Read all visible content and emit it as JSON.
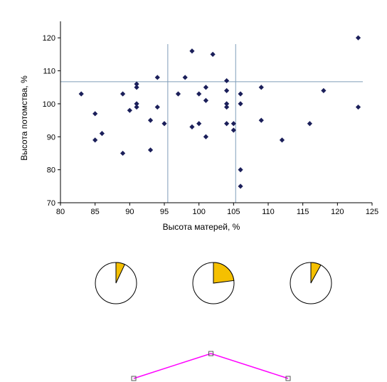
{
  "chart_data": [
    {
      "type": "scatter",
      "xlabel": "Высота матерей, %",
      "ylabel": "Высота потомства, %",
      "xlim": [
        80,
        125
      ],
      "ylim": [
        70,
        125
      ],
      "xticks": [
        80,
        85,
        90,
        95,
        100,
        105,
        110,
        115,
        120,
        125
      ],
      "yticks": [
        70,
        80,
        90,
        100,
        110,
        120
      ],
      "grid": false,
      "marker": "diamond",
      "marker_color": "#1b1f5a",
      "reference_lines_color": "#7f9db9",
      "reference_lines": {
        "x": [
          95.5,
          105.3
        ],
        "y": 106.7
      },
      "points": [
        {
          "x": 83,
          "y": 103
        },
        {
          "x": 85,
          "y": 97
        },
        {
          "x": 85,
          "y": 89
        },
        {
          "x": 86,
          "y": 91
        },
        {
          "x": 89,
          "y": 103
        },
        {
          "x": 89,
          "y": 85
        },
        {
          "x": 90,
          "y": 98
        },
        {
          "x": 91,
          "y": 106
        },
        {
          "x": 91,
          "y": 105
        },
        {
          "x": 91,
          "y": 100
        },
        {
          "x": 91,
          "y": 99
        },
        {
          "x": 93,
          "y": 95
        },
        {
          "x": 93,
          "y": 86
        },
        {
          "x": 94,
          "y": 108
        },
        {
          "x": 94,
          "y": 99
        },
        {
          "x": 95,
          "y": 94
        },
        {
          "x": 97,
          "y": 103
        },
        {
          "x": 98,
          "y": 108
        },
        {
          "x": 99,
          "y": 116
        },
        {
          "x": 99,
          "y": 93
        },
        {
          "x": 100,
          "y": 103
        },
        {
          "x": 100,
          "y": 94
        },
        {
          "x": 101,
          "y": 105
        },
        {
          "x": 101,
          "y": 101
        },
        {
          "x": 101,
          "y": 90
        },
        {
          "x": 102,
          "y": 115
        },
        {
          "x": 104,
          "y": 107
        },
        {
          "x": 104,
          "y": 104
        },
        {
          "x": 104,
          "y": 100
        },
        {
          "x": 104,
          "y": 99
        },
        {
          "x": 104,
          "y": 94
        },
        {
          "x": 105,
          "y": 94
        },
        {
          "x": 105,
          "y": 92
        },
        {
          "x": 106,
          "y": 103
        },
        {
          "x": 106,
          "y": 100
        },
        {
          "x": 106,
          "y": 80
        },
        {
          "x": 106,
          "y": 75
        },
        {
          "x": 109,
          "y": 105
        },
        {
          "x": 109,
          "y": 95
        },
        {
          "x": 112,
          "y": 89
        },
        {
          "x": 116,
          "y": 94
        },
        {
          "x": 118,
          "y": 104
        },
        {
          "x": 123,
          "y": 120
        },
        {
          "x": 123,
          "y": 99
        }
      ]
    },
    {
      "type": "pie",
      "highlight_color": "#f5c000",
      "other_color": "#ffffff",
      "pies": [
        {
          "slices": [
            {
              "value": 7
            },
            {
              "value": 93
            }
          ]
        },
        {
          "slices": [
            {
              "value": 23
            },
            {
              "value": 77
            }
          ]
        },
        {
          "slices": [
            {
              "value": 8
            },
            {
              "value": 92
            }
          ]
        }
      ]
    },
    {
      "type": "line",
      "color": "#ff00ff",
      "marker": "square",
      "x": [
        1,
        2,
        3
      ],
      "values": [
        1,
        2,
        1
      ]
    }
  ]
}
